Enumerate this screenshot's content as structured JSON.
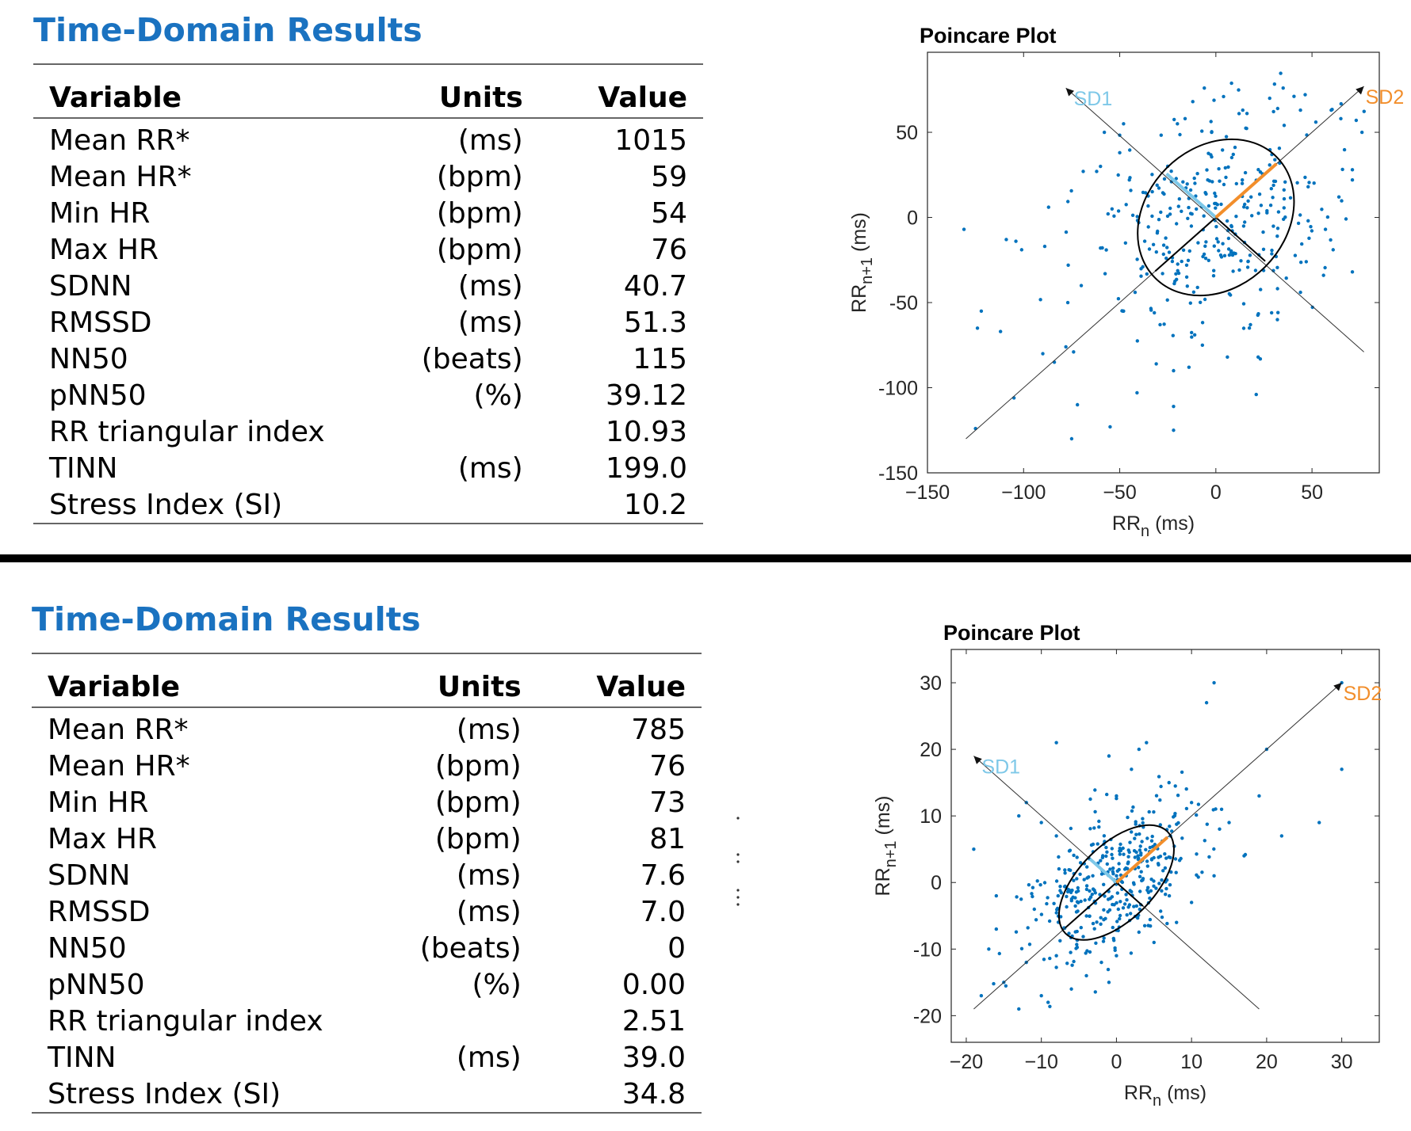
{
  "panels": [
    {
      "title": "Time-Domain Results",
      "headers": {
        "variable": "Variable",
        "units": "Units",
        "value": "Value"
      },
      "rows": [
        {
          "variable": "Mean RR*",
          "units": "(ms)",
          "value": "1015"
        },
        {
          "variable": "Mean HR*",
          "units": "(bpm)",
          "value": "59"
        },
        {
          "variable": "Min HR",
          "units": "(bpm)",
          "value": "54"
        },
        {
          "variable": "Max HR",
          "units": "(bpm)",
          "value": "76"
        },
        {
          "variable": "SDNN",
          "units": "(ms)",
          "value": "40.7"
        },
        {
          "variable": "RMSSD",
          "units": "(ms)",
          "value": "51.3"
        },
        {
          "variable": "NN50",
          "units": "(beats)",
          "value": "115"
        },
        {
          "variable": "pNN50",
          "units": "(%)",
          "value": "39.12"
        },
        {
          "variable": "RR triangular index",
          "units": "",
          "value": "10.93"
        },
        {
          "variable": "TINN",
          "units": "(ms)",
          "value": "199.0"
        },
        {
          "variable": "Stress Index (SI)",
          "units": "",
          "value": "10.2"
        }
      ]
    },
    {
      "title": "Time-Domain Results",
      "headers": {
        "variable": "Variable",
        "units": "Units",
        "value": "Value"
      },
      "rows": [
        {
          "variable": "Mean RR*",
          "units": "(ms)",
          "value": "785"
        },
        {
          "variable": "Mean HR*",
          "units": "(bpm)",
          "value": "76"
        },
        {
          "variable": "Min HR",
          "units": "(bpm)",
          "value": "73"
        },
        {
          "variable": "Max HR",
          "units": "(bpm)",
          "value": "81"
        },
        {
          "variable": "SDNN",
          "units": "(ms)",
          "value": "7.6"
        },
        {
          "variable": "RMSSD",
          "units": "(ms)",
          "value": "7.0"
        },
        {
          "variable": "NN50",
          "units": "(beats)",
          "value": "0"
        },
        {
          "variable": "pNN50",
          "units": "(%)",
          "value": "0.00"
        },
        {
          "variable": "RR triangular index",
          "units": "",
          "value": "2.51"
        },
        {
          "variable": "TINN",
          "units": "(ms)",
          "value": "39.0"
        },
        {
          "variable": "Stress Index (SI)",
          "units": "",
          "value": "34.8"
        }
      ]
    }
  ],
  "chart_data": [
    {
      "type": "scatter",
      "title": "Poincare Plot",
      "xlabel": "RR_n (ms)",
      "ylabel": "RR_n+1 (ms)",
      "xlim": [
        -150,
        85
      ],
      "ylim": [
        -150,
        97
      ],
      "xticks": [
        -150,
        -100,
        -50,
        0,
        50
      ],
      "yticks": [
        -150,
        -100,
        -50,
        0,
        50
      ],
      "grid": false,
      "sd_labels": {
        "sd1": "SD1",
        "sd2": "SD2"
      },
      "colors": {
        "points": "#0072bd",
        "sd1": "#7ec8e8",
        "sd2": "#f28e2b",
        "ellipse": "#000000"
      },
      "ellipse": {
        "center": [
          0,
          0
        ],
        "sd1": 36.3,
        "sd2": 44.6
      },
      "sd1_axis": {
        "from": [
          -78,
          76
        ],
        "to": [
          77,
          -79
        ]
      },
      "sd2_axis": {
        "from": [
          -130,
          -130
        ],
        "to": [
          77,
          77
        ]
      },
      "point_spread": {
        "sd1": 36.3,
        "sd2": 44.6,
        "count": 300
      },
      "points": [
        [
          -131,
          -7
        ],
        [
          -122,
          -55
        ],
        [
          -124,
          -65
        ],
        [
          -112,
          -67
        ],
        [
          -109,
          -13
        ],
        [
          -104,
          -14
        ],
        [
          -101,
          -19
        ],
        [
          -105,
          -106
        ],
        [
          -125,
          -124
        ],
        [
          -74,
          -79
        ],
        [
          -78,
          -76
        ],
        [
          -72,
          -110
        ],
        [
          -75,
          -130
        ],
        [
          -55,
          -123
        ],
        [
          -41,
          -103
        ],
        [
          -22,
          -111
        ],
        [
          -22,
          -125
        ],
        [
          -11,
          -69
        ],
        [
          -7,
          -75
        ],
        [
          -31,
          -86
        ],
        [
          -22,
          -90
        ],
        [
          -14,
          -88
        ],
        [
          21,
          -104
        ],
        [
          22,
          -82
        ],
        [
          6,
          -82
        ],
        [
          -60,
          30
        ],
        [
          -62,
          27
        ],
        [
          -58,
          50
        ],
        [
          -48,
          55
        ],
        [
          -50,
          38
        ],
        [
          -45,
          22
        ],
        [
          -54,
          5
        ],
        [
          -60,
          -18
        ],
        [
          -47,
          -15
        ],
        [
          -38,
          -29
        ],
        [
          -42,
          -44
        ],
        [
          -48,
          -55
        ],
        [
          -32,
          -56
        ],
        [
          -29,
          -63
        ],
        [
          -20,
          55
        ],
        [
          -16,
          58
        ],
        [
          -12,
          68
        ],
        [
          -6,
          76
        ],
        [
          4,
          71
        ],
        [
          14,
          63
        ],
        [
          28,
          70
        ],
        [
          35,
          76
        ],
        [
          44,
          63
        ],
        [
          52,
          56
        ],
        [
          60,
          63
        ],
        [
          65,
          58
        ],
        [
          73,
          57
        ],
        [
          76,
          50
        ],
        [
          71,
          28
        ],
        [
          71,
          22
        ],
        [
          64,
          12
        ],
        [
          57,
          -7
        ],
        [
          61,
          -19
        ],
        [
          71,
          -32
        ],
        [
          56,
          -34
        ],
        [
          47,
          -26
        ],
        [
          44,
          -44
        ],
        [
          32,
          -60
        ],
        [
          29,
          -56
        ],
        [
          18,
          -63
        ],
        [
          48,
          -2
        ],
        [
          48,
          18
        ],
        [
          -87,
          6
        ],
        [
          -89,
          -17
        ],
        [
          -77,
          -50
        ],
        [
          -84,
          -85
        ],
        [
          -90,
          -80
        ],
        [
          -70,
          -40
        ]
      ]
    },
    {
      "type": "scatter",
      "title": "Poincare Plot",
      "xlabel": "RR_n (ms)",
      "ylabel": "RR_n+1 (ms)",
      "xlim": [
        -22,
        35
      ],
      "ylim": [
        -24,
        35
      ],
      "xticks": [
        -20,
        -10,
        0,
        10,
        20,
        30
      ],
      "yticks": [
        -20,
        -10,
        0,
        10,
        20,
        30
      ],
      "grid": false,
      "sd_labels": {
        "sd1": "SD1",
        "sd2": "SD2"
      },
      "colors": {
        "points": "#0072bd",
        "sd1": "#7ec8e8",
        "sd2": "#f28e2b",
        "ellipse": "#000000"
      },
      "ellipse": {
        "center": [
          0,
          0
        ],
        "sd1": 5.0,
        "sd2": 9.6
      },
      "sd1_axis": {
        "from": [
          -19,
          19
        ],
        "to": [
          19,
          -19
        ]
      },
      "sd2_axis": {
        "from": [
          -19,
          -19
        ],
        "to": [
          30,
          30
        ]
      },
      "point_spread": {
        "sd1": 5.0,
        "sd2": 9.6,
        "count": 380
      },
      "points": [
        [
          13,
          30
        ],
        [
          12,
          27
        ],
        [
          30,
          30
        ],
        [
          30,
          17
        ],
        [
          27,
          9
        ],
        [
          20,
          20
        ],
        [
          19,
          13
        ],
        [
          22,
          7
        ],
        [
          -19,
          5
        ],
        [
          -16,
          -2
        ],
        [
          -16,
          -7
        ],
        [
          -15,
          -15
        ],
        [
          -18,
          -17
        ],
        [
          -13,
          -19
        ],
        [
          -12,
          -12
        ],
        [
          -10,
          -17
        ],
        [
          -6,
          -16
        ],
        [
          -2,
          -12
        ],
        [
          -12,
          12
        ],
        [
          -8,
          21
        ],
        [
          0,
          13
        ],
        [
          3,
          20
        ],
        [
          4,
          21
        ],
        [
          2,
          17
        ],
        [
          -1,
          19
        ],
        [
          7,
          15
        ],
        [
          10,
          12
        ],
        [
          14,
          11
        ],
        [
          15,
          9
        ],
        [
          17,
          4
        ],
        [
          -13,
          10
        ],
        [
          -10,
          9
        ],
        [
          -8,
          7
        ],
        [
          -4,
          -14
        ],
        [
          0,
          -11
        ],
        [
          5,
          -9
        ],
        [
          8,
          -6
        ],
        [
          -17,
          -10
        ],
        [
          -8,
          -11
        ],
        [
          10,
          -3
        ],
        [
          13,
          1
        ],
        [
          -1,
          -15
        ]
      ]
    }
  ]
}
